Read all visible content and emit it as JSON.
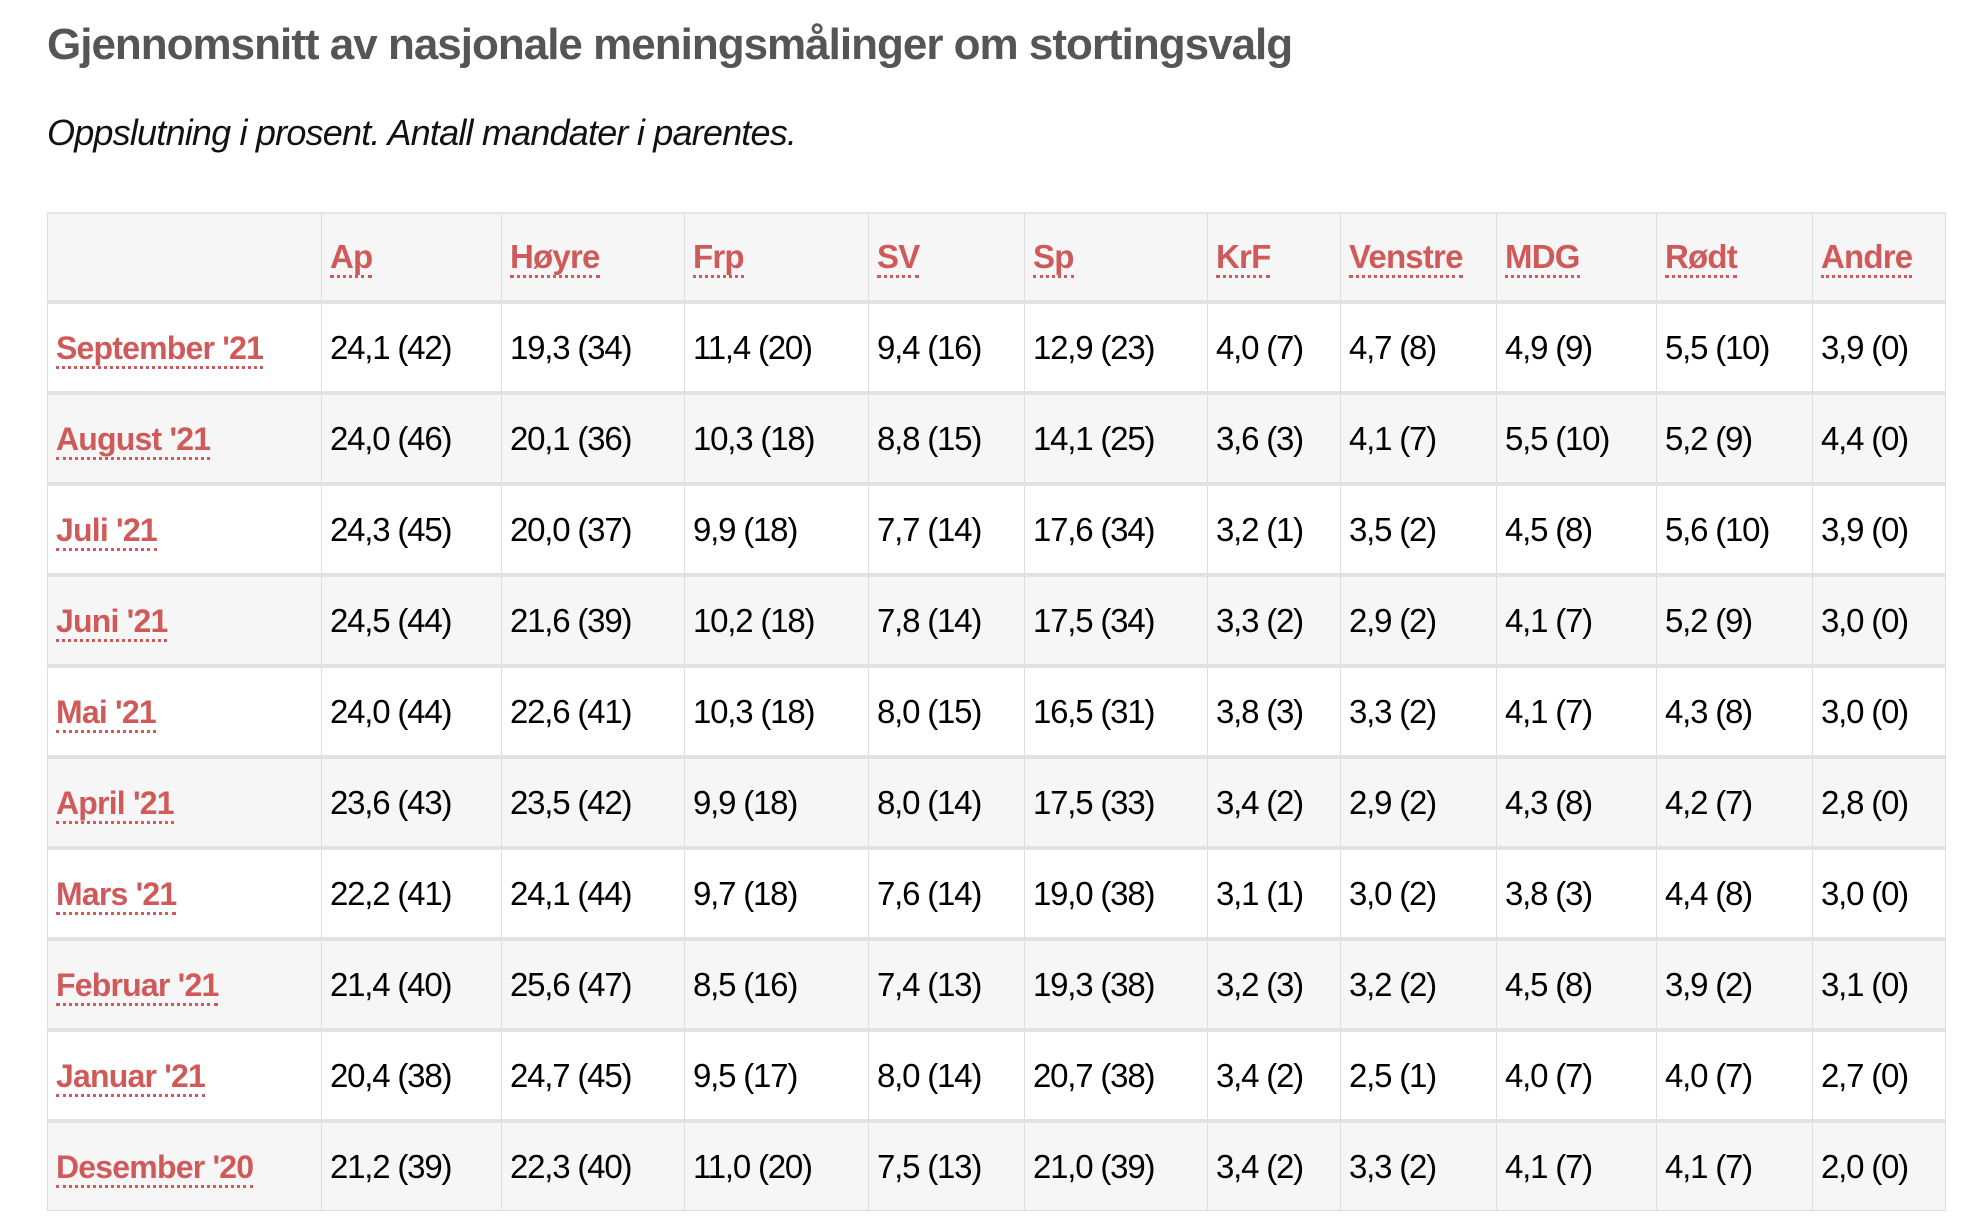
{
  "title": "Gjennomsnitt av nasjonale meningsmålinger om stortingsvalg",
  "subtitle": "Oppslutning i prosent. Antall mandater i parentes.",
  "accent_color": "#d05a5a",
  "table": {
    "columns": [
      "Ap",
      "Høyre",
      "Frp",
      "SV",
      "Sp",
      "KrF",
      "Venstre",
      "MDG",
      "Rødt",
      "Andre"
    ],
    "rows": [
      {
        "month": "September '21",
        "cells": [
          "24,1 (42)",
          "19,3 (34)",
          "11,4 (20)",
          "9,4 (16)",
          "12,9 (23)",
          "4,0 (7)",
          "4,7 (8)",
          "4,9 (9)",
          "5,5 (10)",
          "3,9 (0)"
        ]
      },
      {
        "month": "August '21",
        "cells": [
          "24,0 (46)",
          "20,1 (36)",
          "10,3 (18)",
          "8,8 (15)",
          "14,1 (25)",
          "3,6 (3)",
          "4,1 (7)",
          "5,5 (10)",
          "5,2 (9)",
          "4,4 (0)"
        ]
      },
      {
        "month": "Juli '21",
        "cells": [
          "24,3 (45)",
          "20,0 (37)",
          "9,9 (18)",
          "7,7 (14)",
          "17,6 (34)",
          "3,2 (1)",
          "3,5 (2)",
          "4,5 (8)",
          "5,6 (10)",
          "3,9 (0)"
        ]
      },
      {
        "month": "Juni '21",
        "cells": [
          "24,5 (44)",
          "21,6 (39)",
          "10,2 (18)",
          "7,8 (14)",
          "17,5 (34)",
          "3,3 (2)",
          "2,9 (2)",
          "4,1 (7)",
          "5,2 (9)",
          "3,0 (0)"
        ]
      },
      {
        "month": "Mai '21",
        "cells": [
          "24,0 (44)",
          "22,6 (41)",
          "10,3 (18)",
          "8,0 (15)",
          "16,5 (31)",
          "3,8 (3)",
          "3,3 (2)",
          "4,1 (7)",
          "4,3 (8)",
          "3,0 (0)"
        ]
      },
      {
        "month": "April '21",
        "cells": [
          "23,6 (43)",
          "23,5 (42)",
          "9,9 (18)",
          "8,0 (14)",
          "17,5 (33)",
          "3,4 (2)",
          "2,9 (2)",
          "4,3 (8)",
          "4,2 (7)",
          "2,8 (0)"
        ]
      },
      {
        "month": "Mars '21",
        "cells": [
          "22,2 (41)",
          "24,1 (44)",
          "9,7 (18)",
          "7,6 (14)",
          "19,0 (38)",
          "3,1 (1)",
          "3,0 (2)",
          "3,8 (3)",
          "4,4 (8)",
          "3,0 (0)"
        ]
      },
      {
        "month": "Februar '21",
        "cells": [
          "21,4 (40)",
          "25,6 (47)",
          "8,5 (16)",
          "7,4 (13)",
          "19,3 (38)",
          "3,2 (3)",
          "3,2 (2)",
          "4,5 (8)",
          "3,9 (2)",
          "3,1 (0)"
        ]
      },
      {
        "month": "Januar '21",
        "cells": [
          "20,4 (38)",
          "24,7 (45)",
          "9,5 (17)",
          "8,0 (14)",
          "20,7 (38)",
          "3,4 (2)",
          "2,5 (1)",
          "4,0 (7)",
          "4,0 (7)",
          "2,7 (0)"
        ]
      },
      {
        "month": "Desember '20",
        "cells": [
          "21,2 (39)",
          "22,3 (40)",
          "11,0 (20)",
          "7,5 (13)",
          "21,0 (39)",
          "3,4 (2)",
          "3,3 (2)",
          "4,1 (7)",
          "4,1 (7)",
          "2,0 (0)"
        ]
      }
    ]
  }
}
